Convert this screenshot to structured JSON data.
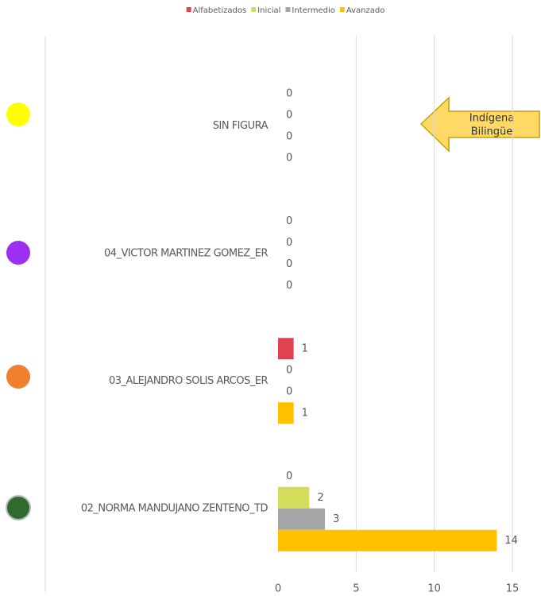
{
  "chart_data": {
    "type": "bar",
    "orientation": "horizontal",
    "categories": [
      "SIN FIGURA",
      "04_VICTOR MARTINEZ GOMEZ_ER",
      "03_ALEJANDRO SOLIS ARCOS_ER",
      "02_NORMA MANDUJANO ZENTENO_TD"
    ],
    "series": [
      {
        "name": "Alfabetizados",
        "color": "#e0434f",
        "values": [
          0,
          0,
          1,
          0
        ]
      },
      {
        "name": "Inicial",
        "color": "#d4dc5c",
        "values": [
          0,
          0,
          0,
          2
        ]
      },
      {
        "name": "Intermedio",
        "color": "#a5a5a5",
        "values": [
          0,
          0,
          0,
          3
        ]
      },
      {
        "name": "Avanzado",
        "color": "#ffc000",
        "values": [
          0,
          0,
          1,
          14
        ]
      }
    ],
    "xlim": [
      0,
      15
    ],
    "xticks": [
      0,
      5,
      10,
      15
    ],
    "grid": true,
    "legend": "top",
    "annotation": [
      "Indígena",
      "Bilingüe"
    ]
  }
}
